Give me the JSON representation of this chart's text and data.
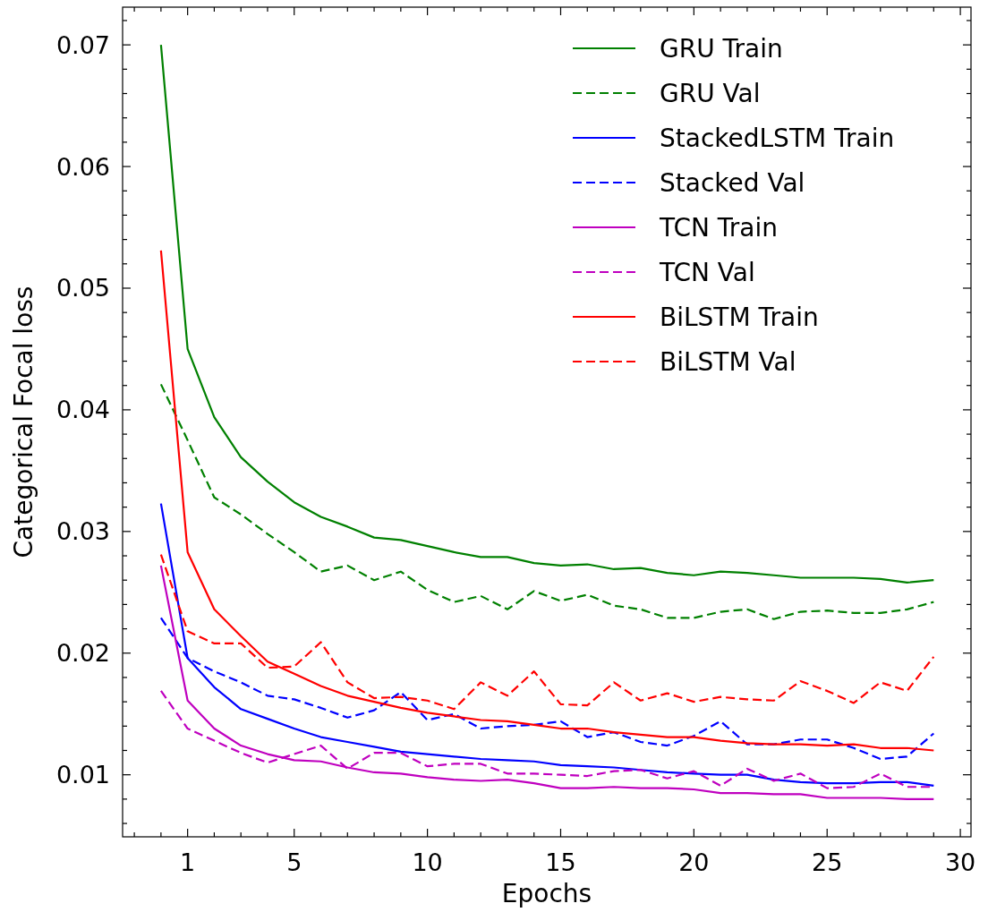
{
  "chart_data": {
    "type": "line",
    "xlabel": "Epochs",
    "ylabel": "Categorical Focal loss",
    "x": [
      0,
      1,
      2,
      3,
      4,
      5,
      6,
      7,
      8,
      9,
      10,
      11,
      12,
      13,
      14,
      15,
      16,
      17,
      18,
      19,
      20,
      21,
      22,
      23,
      24,
      25,
      26,
      27,
      28,
      29
    ],
    "xlim": [
      -1.44,
      30.4
    ],
    "ylim": [
      0.0049,
      0.0731
    ],
    "xticks": [
      {
        "value": -1,
        "label": null
      },
      {
        "value": 0,
        "label": null
      },
      1,
      {
        "value": 2,
        "label": null
      },
      {
        "value": 3,
        "label": null
      },
      {
        "value": 4,
        "label": null
      },
      5,
      {
        "value": 6,
        "label": null
      },
      {
        "value": 7,
        "label": null
      },
      {
        "value": 8,
        "label": null
      },
      {
        "value": 9,
        "label": null
      },
      10,
      {
        "value": 11,
        "label": null
      },
      {
        "value": 12,
        "label": null
      },
      {
        "value": 13,
        "label": null
      },
      {
        "value": 14,
        "label": null
      },
      15,
      {
        "value": 16,
        "label": null
      },
      {
        "value": 17,
        "label": null
      },
      {
        "value": 18,
        "label": null
      },
      {
        "value": 19,
        "label": null
      },
      20,
      {
        "value": 21,
        "label": null
      },
      {
        "value": 22,
        "label": null
      },
      {
        "value": 23,
        "label": null
      },
      {
        "value": 24,
        "label": null
      },
      25,
      {
        "value": 26,
        "label": null
      },
      {
        "value": 27,
        "label": null
      },
      {
        "value": 28,
        "label": null
      },
      {
        "value": 29,
        "label": null
      },
      30
    ],
    "yticks": [
      {
        "value": 0.006,
        "label": null
      },
      {
        "value": 0.008,
        "label": null
      },
      0.01,
      {
        "value": 0.012,
        "label": null
      },
      {
        "value": 0.014,
        "label": null
      },
      {
        "value": 0.016,
        "label": null
      },
      {
        "value": 0.018,
        "label": null
      },
      0.02,
      {
        "value": 0.022,
        "label": null
      },
      {
        "value": 0.024,
        "label": null
      },
      {
        "value": 0.026,
        "label": null
      },
      {
        "value": 0.028,
        "label": null
      },
      0.03,
      {
        "value": 0.032,
        "label": null
      },
      {
        "value": 0.034,
        "label": null
      },
      {
        "value": 0.036,
        "label": null
      },
      {
        "value": 0.038,
        "label": null
      },
      0.04,
      {
        "value": 0.042,
        "label": null
      },
      {
        "value": 0.044,
        "label": null
      },
      {
        "value": 0.046,
        "label": null
      },
      {
        "value": 0.048,
        "label": null
      },
      0.05,
      {
        "value": 0.052,
        "label": null
      },
      {
        "value": 0.054,
        "label": null
      },
      {
        "value": 0.056,
        "label": null
      },
      {
        "value": 0.058,
        "label": null
      },
      0.06,
      {
        "value": 0.062,
        "label": null
      },
      {
        "value": 0.064,
        "label": null
      },
      {
        "value": 0.066,
        "label": null
      },
      {
        "value": 0.068,
        "label": null
      },
      0.07,
      {
        "value": 0.072,
        "label": null
      }
    ],
    "grid": false,
    "legend": "top right",
    "series": [
      {
        "name": "GRU Train",
        "color": "#008000",
        "line_style": "solid",
        "values": [
          0.07,
          0.045,
          0.0394,
          0.0361,
          0.0341,
          0.0324,
          0.0312,
          0.0304,
          0.0295,
          0.0293,
          0.0288,
          0.0283,
          0.0279,
          0.0279,
          0.0274,
          0.0272,
          0.0273,
          0.0269,
          0.027,
          0.0266,
          0.0264,
          0.0267,
          0.0266,
          0.0264,
          0.0262,
          0.0262,
          0.0262,
          0.0261,
          0.0258,
          0.026
        ]
      },
      {
        "name": "GRU Val",
        "color": "#008000",
        "line_style": "dashed",
        "values": [
          0.0421,
          0.0375,
          0.0328,
          0.0314,
          0.0298,
          0.0283,
          0.0267,
          0.0272,
          0.026,
          0.0267,
          0.0252,
          0.0242,
          0.0247,
          0.0236,
          0.0251,
          0.0243,
          0.0248,
          0.0239,
          0.0236,
          0.0229,
          0.0229,
          0.0234,
          0.0236,
          0.0228,
          0.0234,
          0.0235,
          0.0233,
          0.0233,
          0.0236,
          0.0242
        ]
      },
      {
        "name": "StackedLSTM Train",
        "color": "#0000ff",
        "line_style": "solid",
        "values": [
          0.0323,
          0.0196,
          0.0172,
          0.0154,
          0.0146,
          0.0138,
          0.0131,
          0.0127,
          0.0123,
          0.0119,
          0.0117,
          0.0115,
          0.0113,
          0.0112,
          0.0111,
          0.0108,
          0.0107,
          0.0106,
          0.0104,
          0.0102,
          0.0101,
          0.01,
          0.01,
          0.0096,
          0.0094,
          0.0093,
          0.0093,
          0.0094,
          0.0094,
          0.0091
        ]
      },
      {
        "name": "Stacked Val",
        "color": "#0000ff",
        "line_style": "dashed",
        "values": [
          0.0229,
          0.0196,
          0.0185,
          0.0176,
          0.0165,
          0.0162,
          0.0155,
          0.0147,
          0.0153,
          0.0168,
          0.0145,
          0.015,
          0.0138,
          0.014,
          0.0141,
          0.0144,
          0.0131,
          0.0135,
          0.0127,
          0.0124,
          0.0132,
          0.0144,
          0.0125,
          0.0125,
          0.0129,
          0.0129,
          0.0122,
          0.0113,
          0.0115,
          0.0134
        ]
      },
      {
        "name": "TCN Train",
        "color": "#bf00bf",
        "line_style": "solid",
        "values": [
          0.0272,
          0.0161,
          0.0138,
          0.0124,
          0.0117,
          0.0112,
          0.0111,
          0.0106,
          0.0102,
          0.0101,
          0.0098,
          0.0096,
          0.0095,
          0.0096,
          0.0093,
          0.0089,
          0.0089,
          0.009,
          0.0089,
          0.0089,
          0.0088,
          0.0085,
          0.0085,
          0.0084,
          0.0084,
          0.0081,
          0.0081,
          0.0081,
          0.008,
          0.008
        ]
      },
      {
        "name": "TCN Val",
        "color": "#bf00bf",
        "line_style": "dashed",
        "values": [
          0.0169,
          0.0138,
          0.0128,
          0.0118,
          0.011,
          0.0117,
          0.0124,
          0.0105,
          0.0118,
          0.0118,
          0.0107,
          0.0109,
          0.0109,
          0.0101,
          0.0101,
          0.01,
          0.0099,
          0.0103,
          0.0104,
          0.0097,
          0.0103,
          0.0091,
          0.0105,
          0.0095,
          0.0101,
          0.0089,
          0.009,
          0.0101,
          0.009,
          0.009
        ]
      },
      {
        "name": "BiLSTM Train",
        "color": "#ff0000",
        "line_style": "solid",
        "values": [
          0.0531,
          0.0283,
          0.0236,
          0.0214,
          0.0193,
          0.0183,
          0.0173,
          0.0165,
          0.016,
          0.0155,
          0.0151,
          0.0148,
          0.0145,
          0.0144,
          0.0141,
          0.0138,
          0.0138,
          0.0135,
          0.0133,
          0.0131,
          0.0131,
          0.0128,
          0.0126,
          0.0125,
          0.0125,
          0.0124,
          0.0125,
          0.0122,
          0.0122,
          0.012
        ]
      },
      {
        "name": "BiLSTM Val",
        "color": "#ff0000",
        "line_style": "dashed",
        "values": [
          0.0281,
          0.0218,
          0.0208,
          0.0208,
          0.0188,
          0.0189,
          0.0209,
          0.0176,
          0.0163,
          0.0164,
          0.0161,
          0.0154,
          0.0176,
          0.0165,
          0.0185,
          0.0158,
          0.0157,
          0.0176,
          0.0161,
          0.0167,
          0.016,
          0.0164,
          0.0162,
          0.0161,
          0.0177,
          0.0169,
          0.0159,
          0.0176,
          0.0169,
          0.0197
        ]
      }
    ]
  }
}
